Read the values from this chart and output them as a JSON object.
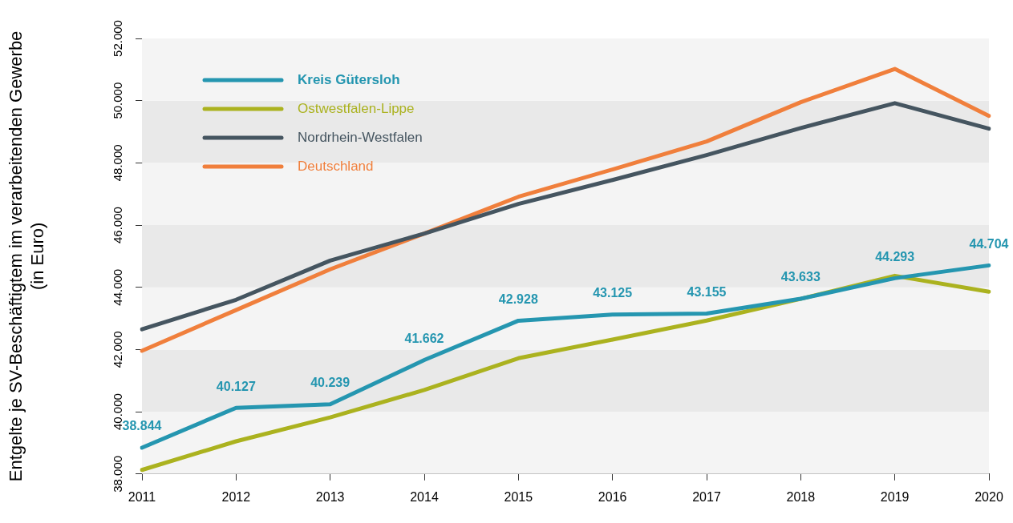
{
  "chart_data": {
    "type": "line",
    "ylabel": "Entgelte je SV-Beschäftigtem im verarbeitenden Gewerbe\n(in Euro)",
    "categories": [
      "2011",
      "2012",
      "2013",
      "2014",
      "2015",
      "2016",
      "2017",
      "2018",
      "2019",
      "2020"
    ],
    "series": [
      {
        "name": "Kreis Gütersloh",
        "color": "#2596b0",
        "values": [
          38844,
          40127,
          40239,
          41662,
          42928,
          43125,
          43155,
          43633,
          44293,
          44704
        ],
        "value_labels": [
          "38.844",
          "40.127",
          "40.239",
          "41.662",
          "42.928",
          "43.125",
          "43.155",
          "43.633",
          "44.293",
          "44.704"
        ]
      },
      {
        "name": "Ostwestfalen-Lippe",
        "color": "#abb21f",
        "values": [
          38130,
          39050,
          39820,
          40700,
          41720,
          42320,
          42930,
          43630,
          44370,
          43860
        ]
      },
      {
        "name": "Nordrhein-Westfalen",
        "color": "#455560",
        "values": [
          42650,
          43600,
          44860,
          45730,
          46680,
          47450,
          48250,
          49120,
          49920,
          49100
        ]
      },
      {
        "name": "Deutschland",
        "color": "#f07f3c",
        "values": [
          41960,
          43270,
          44580,
          45730,
          46910,
          47790,
          48690,
          49950,
          51020,
          49510
        ]
      }
    ],
    "ylim": [
      38000,
      52000
    ],
    "yticks": [
      {
        "value": 38000,
        "label": "38.000"
      },
      {
        "value": 40000,
        "label": "40.000"
      },
      {
        "value": 42000,
        "label": "42.000"
      },
      {
        "value": 44000,
        "label": "44.000"
      },
      {
        "value": 46000,
        "label": "46.000"
      },
      {
        "value": 48000,
        "label": "48.000"
      },
      {
        "value": 50000,
        "label": "50.000"
      },
      {
        "value": 52000,
        "label": "52.000"
      }
    ],
    "bands": [
      {
        "axis": "y",
        "from": 38000,
        "to": 40000,
        "color": "#f4f4f4"
      },
      {
        "axis": "y",
        "from": 40000,
        "to": 42000,
        "color": "#e9e9e9"
      },
      {
        "axis": "y",
        "from": 42000,
        "to": 44000,
        "color": "#f4f4f4"
      },
      {
        "axis": "y",
        "from": 44000,
        "to": 46000,
        "color": "#e9e9e9"
      },
      {
        "axis": "y",
        "from": 46000,
        "to": 48000,
        "color": "#f4f4f4"
      },
      {
        "axis": "y",
        "from": 48000,
        "to": 50000,
        "color": "#e9e9e9"
      },
      {
        "axis": "y",
        "from": 50000,
        "to": 52000,
        "color": "#f4f4f4"
      }
    ],
    "legend": "top left",
    "marker": "none",
    "line_style": "solid"
  }
}
